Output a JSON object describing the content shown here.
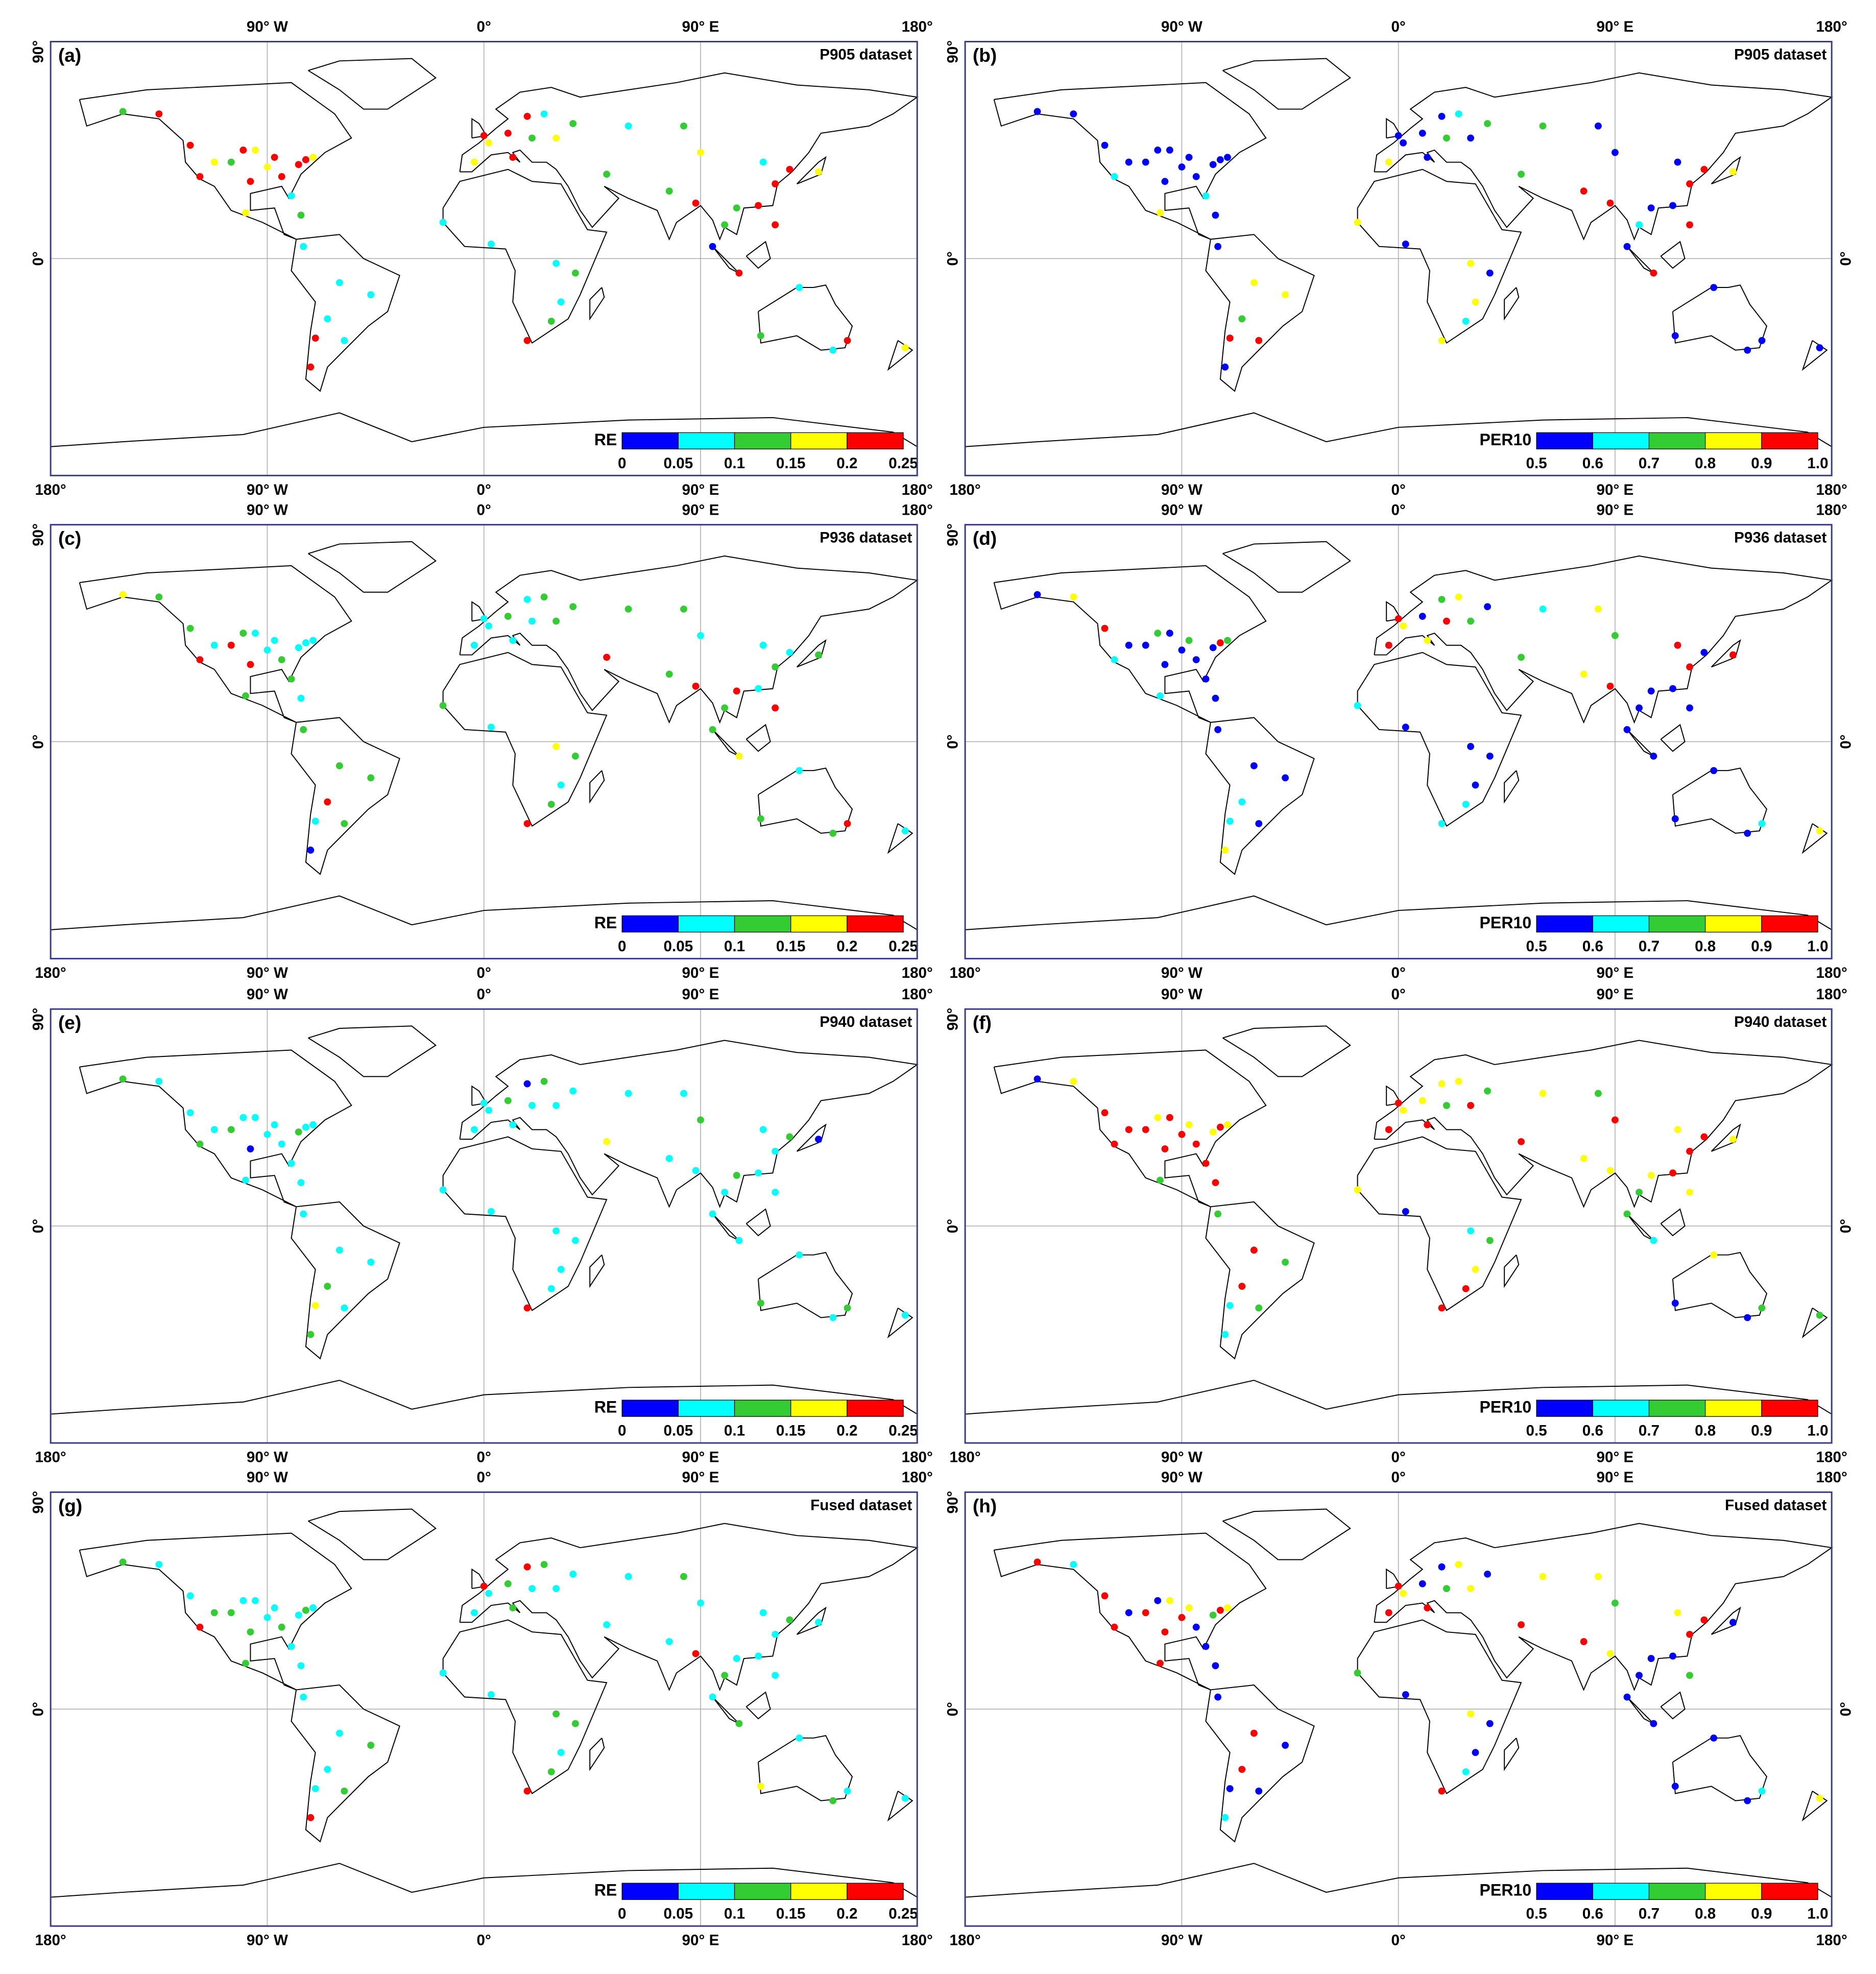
{
  "map": {
    "xlim": [
      -180,
      180
    ],
    "ylim": [
      -90,
      90
    ],
    "lon_ticks": [
      {
        "value": -180,
        "label": "180°"
      },
      {
        "value": -90,
        "label": "90° W"
      },
      {
        "value": 0,
        "label": "0°"
      },
      {
        "value": 90,
        "label": "90° E"
      },
      {
        "value": 180,
        "label": "180°"
      }
    ],
    "lat_ticks": [
      {
        "value": 90,
        "label": "90°"
      },
      {
        "value": 0,
        "label": "0°"
      }
    ]
  },
  "stations": {
    "lon": [
      -150,
      -135,
      -122,
      -118,
      -112,
      -105,
      -100,
      -95,
      -97,
      -90,
      -87,
      -84,
      -80,
      -77,
      -74,
      -71,
      -99,
      -76,
      -75,
      -60,
      -47,
      -65,
      -58,
      -70,
      -72,
      0,
      2,
      10,
      20,
      12,
      -4,
      25,
      37,
      18,
      30,
      -17,
      3,
      30,
      28,
      18,
      38,
      32,
      51,
      77,
      88,
      100,
      105,
      116,
      121,
      127,
      139,
      114,
      106,
      121,
      95,
      60,
      83,
      90,
      115,
      151,
      145,
      131,
      175
    ],
    "lat": [
      61,
      60,
      47,
      34,
      40,
      40,
      45,
      45,
      32,
      38,
      42,
      34,
      26,
      39,
      41,
      42,
      19,
      18,
      5,
      -10,
      -15,
      -25,
      -34,
      -33,
      -45,
      51,
      48,
      52,
      50,
      42,
      40,
      60,
      56,
      59,
      50,
      15,
      6,
      -2,
      -26,
      -34,
      -6,
      -18,
      35,
      28,
      23,
      14,
      21,
      40,
      31,
      37,
      36,
      22,
      -6,
      14,
      5,
      55,
      55,
      44,
      -32,
      -34,
      -38,
      -12,
      -37
    ]
  },
  "panels": [
    {
      "label": "(a)",
      "title": "P905 dataset",
      "colorbar": {
        "label": "RE",
        "bounds": [
          0,
          0.05,
          0.1,
          0.15,
          0.2,
          0.25
        ],
        "colors": [
          "#0000ff",
          "#00ffff",
          "#33cc33",
          "#ffff00",
          "#ff0000"
        ]
      },
      "values": [
        0.12,
        0.22,
        0.22,
        0.22,
        0.17,
        0.12,
        0.22,
        0.17,
        0.22,
        0.17,
        0.22,
        0.22,
        0.07,
        0.22,
        0.22,
        0.17,
        0.17,
        0.12,
        0.07,
        0.07,
        0.07,
        0.07,
        0.07,
        0.22,
        0.22,
        0.22,
        0.17,
        0.22,
        0.12,
        0.22,
        0.17,
        0.07,
        0.12,
        0.22,
        0.17,
        0.07,
        0.07,
        0.07,
        0.12,
        0.22,
        0.12,
        0.07,
        0.12,
        0.12,
        0.22,
        0.12,
        0.12,
        0.07,
        0.22,
        0.22,
        0.17,
        0.22,
        0.22,
        0.22,
        0.03,
        0.07,
        0.12,
        0.17,
        0.12,
        0.22,
        0.07,
        0.07,
        0.17
      ]
    },
    {
      "label": "(b)",
      "title": "P905 dataset",
      "colorbar": {
        "label": "PER10",
        "bounds": [
          0.5,
          0.6,
          0.7,
          0.8,
          0.9,
          {
            "value": 1,
            "label": "1.0"
          }
        ],
        "colors": [
          "#0000ff",
          "#00ffff",
          "#33cc33",
          "#ffff00",
          "#ff0000"
        ]
      },
      "values": [
        0.55,
        0.55,
        0.55,
        0.65,
        0.55,
        0.55,
        0.55,
        0.55,
        0.55,
        0.55,
        0.55,
        0.55,
        0.65,
        0.55,
        0.55,
        0.55,
        0.85,
        0.55,
        0.55,
        0.85,
        0.85,
        0.75,
        0.95,
        0.95,
        0.55,
        0.55,
        0.55,
        0.55,
        0.75,
        0.55,
        0.85,
        0.65,
        0.75,
        0.55,
        0.55,
        0.85,
        0.55,
        0.85,
        0.65,
        0.85,
        0.55,
        0.85,
        0.75,
        0.95,
        0.95,
        0.65,
        0.55,
        0.55,
        0.95,
        0.95,
        0.85,
        0.55,
        0.95,
        0.95,
        0.55,
        0.75,
        0.55,
        0.55,
        0.55,
        0.55,
        0.55,
        0.55,
        0.55
      ]
    },
    {
      "label": "(c)",
      "title": "P936 dataset",
      "colorbar": {
        "label": "RE",
        "bounds": [
          0,
          0.05,
          0.1,
          0.15,
          0.2,
          0.25
        ],
        "colors": [
          "#0000ff",
          "#00ffff",
          "#33cc33",
          "#ffff00",
          "#ff0000"
        ]
      },
      "values": [
        0.17,
        0.12,
        0.12,
        0.22,
        0.07,
        0.22,
        0.12,
        0.07,
        0.22,
        0.07,
        0.07,
        0.12,
        0.12,
        0.07,
        0.07,
        0.07,
        0.12,
        0.07,
        0.12,
        0.12,
        0.12,
        0.22,
        0.12,
        0.07,
        0.03,
        0.07,
        0.07,
        0.12,
        0.07,
        0.07,
        0.07,
        0.12,
        0.12,
        0.07,
        0.12,
        0.12,
        0.07,
        0.17,
        0.12,
        0.22,
        0.12,
        0.07,
        0.22,
        0.12,
        0.22,
        0.12,
        0.22,
        0.07,
        0.12,
        0.07,
        0.12,
        0.07,
        0.17,
        0.22,
        0.12,
        0.12,
        0.12,
        0.07,
        0.12,
        0.22,
        0.12,
        0.07,
        0.07
      ]
    },
    {
      "label": "(d)",
      "title": "P936 dataset",
      "colorbar": {
        "label": "PER10",
        "bounds": [
          0.5,
          0.6,
          0.7,
          0.8,
          0.9,
          {
            "value": 1,
            "label": "1.0"
          }
        ],
        "colors": [
          "#0000ff",
          "#00ffff",
          "#33cc33",
          "#ffff00",
          "#ff0000"
        ]
      },
      "values": [
        0.55,
        0.85,
        0.95,
        0.65,
        0.55,
        0.55,
        0.75,
        0.55,
        0.55,
        0.55,
        0.75,
        0.55,
        0.55,
        0.55,
        0.95,
        0.75,
        0.65,
        0.55,
        0.55,
        0.55,
        0.55,
        0.65,
        0.55,
        0.65,
        0.85,
        0.95,
        0.85,
        0.55,
        0.95,
        0.85,
        0.95,
        0.85,
        0.55,
        0.75,
        0.75,
        0.65,
        0.55,
        0.55,
        0.65,
        0.65,
        0.55,
        0.55,
        0.75,
        0.85,
        0.95,
        0.55,
        0.55,
        0.95,
        0.95,
        0.55,
        0.95,
        0.55,
        0.55,
        0.55,
        0.55,
        0.65,
        0.85,
        0.75,
        0.55,
        0.65,
        0.55,
        0.55,
        0.85
      ]
    },
    {
      "label": "(e)",
      "title": "P940 dataset",
      "colorbar": {
        "label": "RE",
        "bounds": [
          0,
          0.05,
          0.1,
          0.15,
          0.2,
          0.25
        ],
        "colors": [
          "#0000ff",
          "#00ffff",
          "#33cc33",
          "#ffff00",
          "#ff0000"
        ]
      },
      "values": [
        0.12,
        0.07,
        0.07,
        0.12,
        0.07,
        0.12,
        0.07,
        0.07,
        0.03,
        0.07,
        0.07,
        0.07,
        0.07,
        0.12,
        0.07,
        0.07,
        0.07,
        0.07,
        0.07,
        0.07,
        0.07,
        0.12,
        0.07,
        0.17,
        0.12,
        0.07,
        0.07,
        0.12,
        0.07,
        0.07,
        0.07,
        0.12,
        0.07,
        0.03,
        0.07,
        0.07,
        0.07,
        0.07,
        0.07,
        0.22,
        0.07,
        0.07,
        0.17,
        0.07,
        0.07,
        0.07,
        0.12,
        0.07,
        0.07,
        0.12,
        0.03,
        0.07,
        0.07,
        0.07,
        0.07,
        0.07,
        0.07,
        0.12,
        0.12,
        0.12,
        0.07,
        0.07,
        0.07
      ]
    },
    {
      "label": "(f)",
      "title": "P940 dataset",
      "colorbar": {
        "label": "PER10",
        "bounds": [
          0.5,
          0.6,
          0.7,
          0.8,
          0.9,
          {
            "value": 1,
            "label": "1.0"
          }
        ],
        "colors": [
          "#0000ff",
          "#00ffff",
          "#33cc33",
          "#ffff00",
          "#ff0000"
        ]
      },
      "values": [
        0.55,
        0.85,
        0.95,
        0.95,
        0.95,
        0.95,
        0.85,
        0.95,
        0.95,
        0.95,
        0.85,
        0.95,
        0.95,
        0.85,
        0.95,
        0.85,
        0.75,
        0.95,
        0.75,
        0.95,
        0.75,
        0.95,
        0.75,
        0.65,
        0.65,
        0.95,
        0.85,
        0.85,
        0.75,
        0.95,
        0.95,
        0.85,
        0.75,
        0.85,
        0.95,
        0.85,
        0.55,
        0.65,
        0.95,
        0.95,
        0.75,
        0.85,
        0.95,
        0.85,
        0.85,
        0.75,
        0.85,
        0.85,
        0.95,
        0.95,
        0.85,
        0.95,
        0.65,
        0.85,
        0.75,
        0.85,
        0.75,
        0.95,
        0.55,
        0.75,
        0.55,
        0.85,
        0.75
      ]
    },
    {
      "label": "(g)",
      "title": "Fused dataset",
      "colorbar": {
        "label": "RE",
        "bounds": [
          0,
          0.05,
          0.1,
          0.15,
          0.2,
          0.25
        ],
        "colors": [
          "#0000ff",
          "#00ffff",
          "#33cc33",
          "#ffff00",
          "#ff0000"
        ]
      },
      "values": [
        0.12,
        0.07,
        0.07,
        0.22,
        0.12,
        0.12,
        0.07,
        0.07,
        0.12,
        0.07,
        0.07,
        0.12,
        0.07,
        0.07,
        0.12,
        0.07,
        0.12,
        0.07,
        0.07,
        0.07,
        0.12,
        0.07,
        0.12,
        0.07,
        0.22,
        0.22,
        0.07,
        0.12,
        0.07,
        0.12,
        0.07,
        0.12,
        0.07,
        0.22,
        0.07,
        0.07,
        0.07,
        0.12,
        0.12,
        0.22,
        0.12,
        0.07,
        0.07,
        0.07,
        0.22,
        0.12,
        0.07,
        0.07,
        0.07,
        0.12,
        0.07,
        0.07,
        0.12,
        0.07,
        0.07,
        0.07,
        0.12,
        0.07,
        0.17,
        0.07,
        0.12,
        0.07,
        0.07
      ]
    },
    {
      "label": "(h)",
      "title": "Fused dataset",
      "colorbar": {
        "label": "PER10",
        "bounds": [
          0.5,
          0.6,
          0.7,
          0.8,
          0.9,
          {
            "value": 1,
            "label": "1.0"
          }
        ],
        "colors": [
          "#0000ff",
          "#00ffff",
          "#33cc33",
          "#ffff00",
          "#ff0000"
        ]
      },
      "values": [
        0.95,
        0.65,
        0.95,
        0.95,
        0.55,
        0.95,
        0.55,
        0.85,
        0.95,
        0.95,
        0.85,
        0.55,
        0.55,
        0.75,
        0.95,
        0.85,
        0.95,
        0.55,
        0.55,
        0.95,
        0.55,
        0.95,
        0.55,
        0.55,
        0.65,
        0.95,
        0.85,
        0.55,
        0.75,
        0.95,
        0.95,
        0.85,
        0.55,
        0.55,
        0.85,
        0.75,
        0.55,
        0.85,
        0.65,
        0.95,
        0.55,
        0.55,
        0.95,
        0.95,
        0.85,
        0.55,
        0.55,
        0.85,
        0.95,
        0.95,
        0.55,
        0.55,
        0.55,
        0.75,
        0.55,
        0.85,
        0.85,
        0.75,
        0.55,
        0.65,
        0.55,
        0.55,
        0.85
      ]
    }
  ]
}
